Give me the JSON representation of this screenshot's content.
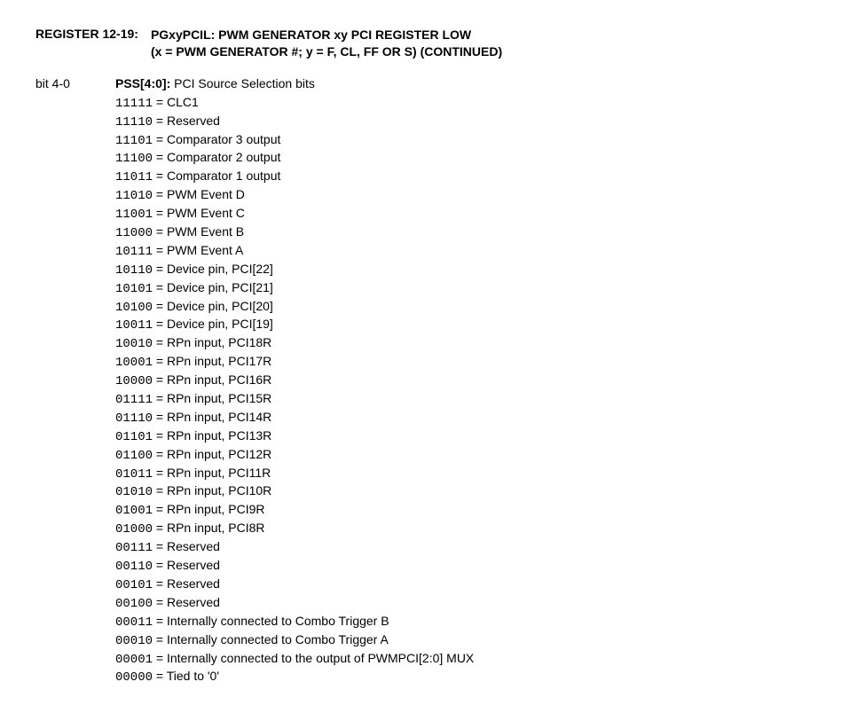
{
  "header": {
    "register_label": "REGISTER 12-19:",
    "title_line1": "PGxyPCIL: PWM GENERATOR xy PCI REGISTER LOW",
    "title_line2": "(x = PWM GENERATOR #; y = F, CL, FF OR S) (CONTINUED)"
  },
  "bit_section": {
    "bit_label": "bit 4-0",
    "field_name": "PSS[4:0]:",
    "field_desc": " PCI Source Selection bits",
    "values": [
      {
        "code": "11111",
        "desc": "CLC1"
      },
      {
        "code": "11110",
        "desc": "Reserved"
      },
      {
        "code": "11101",
        "desc": "Comparator 3 output"
      },
      {
        "code": "11100",
        "desc": "Comparator 2 output"
      },
      {
        "code": "11011",
        "desc": "Comparator 1 output"
      },
      {
        "code": "11010",
        "desc": "PWM Event D"
      },
      {
        "code": "11001",
        "desc": "PWM Event C"
      },
      {
        "code": "11000",
        "desc": "PWM Event B"
      },
      {
        "code": "10111",
        "desc": "PWM Event A"
      },
      {
        "code": "10110",
        "desc": "Device pin, PCI[22]"
      },
      {
        "code": "10101",
        "desc": "Device pin, PCI[21]"
      },
      {
        "code": "10100",
        "desc": "Device pin, PCI[20]"
      },
      {
        "code": "10011",
        "desc": "Device pin, PCI[19]"
      },
      {
        "code": "10010",
        "desc": "RPn input, PCI18R"
      },
      {
        "code": "10001",
        "desc": "RPn input, PCI17R"
      },
      {
        "code": "10000",
        "desc": "RPn input, PCI16R"
      },
      {
        "code": "01111",
        "desc": "RPn input, PCI15R"
      },
      {
        "code": "01110",
        "desc": "RPn input, PCI14R"
      },
      {
        "code": "01101",
        "desc": "RPn input, PCI13R"
      },
      {
        "code": "01100",
        "desc": "RPn input, PCI12R"
      },
      {
        "code": "01011",
        "desc": "RPn input, PCI11R"
      },
      {
        "code": "01010",
        "desc": "RPn input, PCI10R"
      },
      {
        "code": "01001",
        "desc": "RPn input, PCI9R"
      },
      {
        "code": "01000",
        "desc": "RPn input, PCI8R"
      },
      {
        "code": "00111",
        "desc": "Reserved"
      },
      {
        "code": "00110",
        "desc": "Reserved"
      },
      {
        "code": "00101",
        "desc": "Reserved"
      },
      {
        "code": "00100",
        "desc": "Reserved"
      },
      {
        "code": "00011",
        "desc": "Internally connected to Combo Trigger B"
      },
      {
        "code": "00010",
        "desc": "Internally connected to Combo Trigger A"
      },
      {
        "code": "00001",
        "desc": "Internally connected to the output of PWMPCI[2:0] MUX"
      },
      {
        "code": "00000",
        "desc": "Tied to '0'"
      }
    ]
  }
}
